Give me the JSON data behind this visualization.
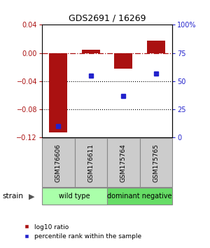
{
  "title": "GDS2691 / 16269",
  "samples": [
    "GSM176606",
    "GSM176611",
    "GSM175764",
    "GSM175765"
  ],
  "log10_ratio": [
    -0.113,
    0.005,
    -0.022,
    0.018
  ],
  "percentile_rank": [
    10,
    55,
    37,
    57
  ],
  "ylim_left": [
    -0.12,
    0.04
  ],
  "ylim_right": [
    0,
    100
  ],
  "yticks_left": [
    -0.12,
    -0.08,
    -0.04,
    0.0,
    0.04
  ],
  "yticks_right": [
    0,
    25,
    50,
    75,
    100
  ],
  "ytick_labels_right": [
    "0",
    "25",
    "50",
    "75",
    "100%"
  ],
  "bar_color": "#aa1111",
  "dot_color": "#2222cc",
  "grid_lines": [
    -0.04,
    -0.08
  ],
  "zero_line": 0.0,
  "groups": [
    {
      "label": "wild type",
      "samples": [
        0,
        1
      ],
      "color": "#aaffaa"
    },
    {
      "label": "dominant negative",
      "samples": [
        2,
        3
      ],
      "color": "#66dd66"
    }
  ],
  "strain_label": "strain",
  "legend_ratio_label": "log10 ratio",
  "legend_rank_label": "percentile rank within the sample",
  "bar_width": 0.55,
  "sample_box_color": "#cccccc",
  "sample_box_edge": "#888888",
  "title_fontsize": 9
}
